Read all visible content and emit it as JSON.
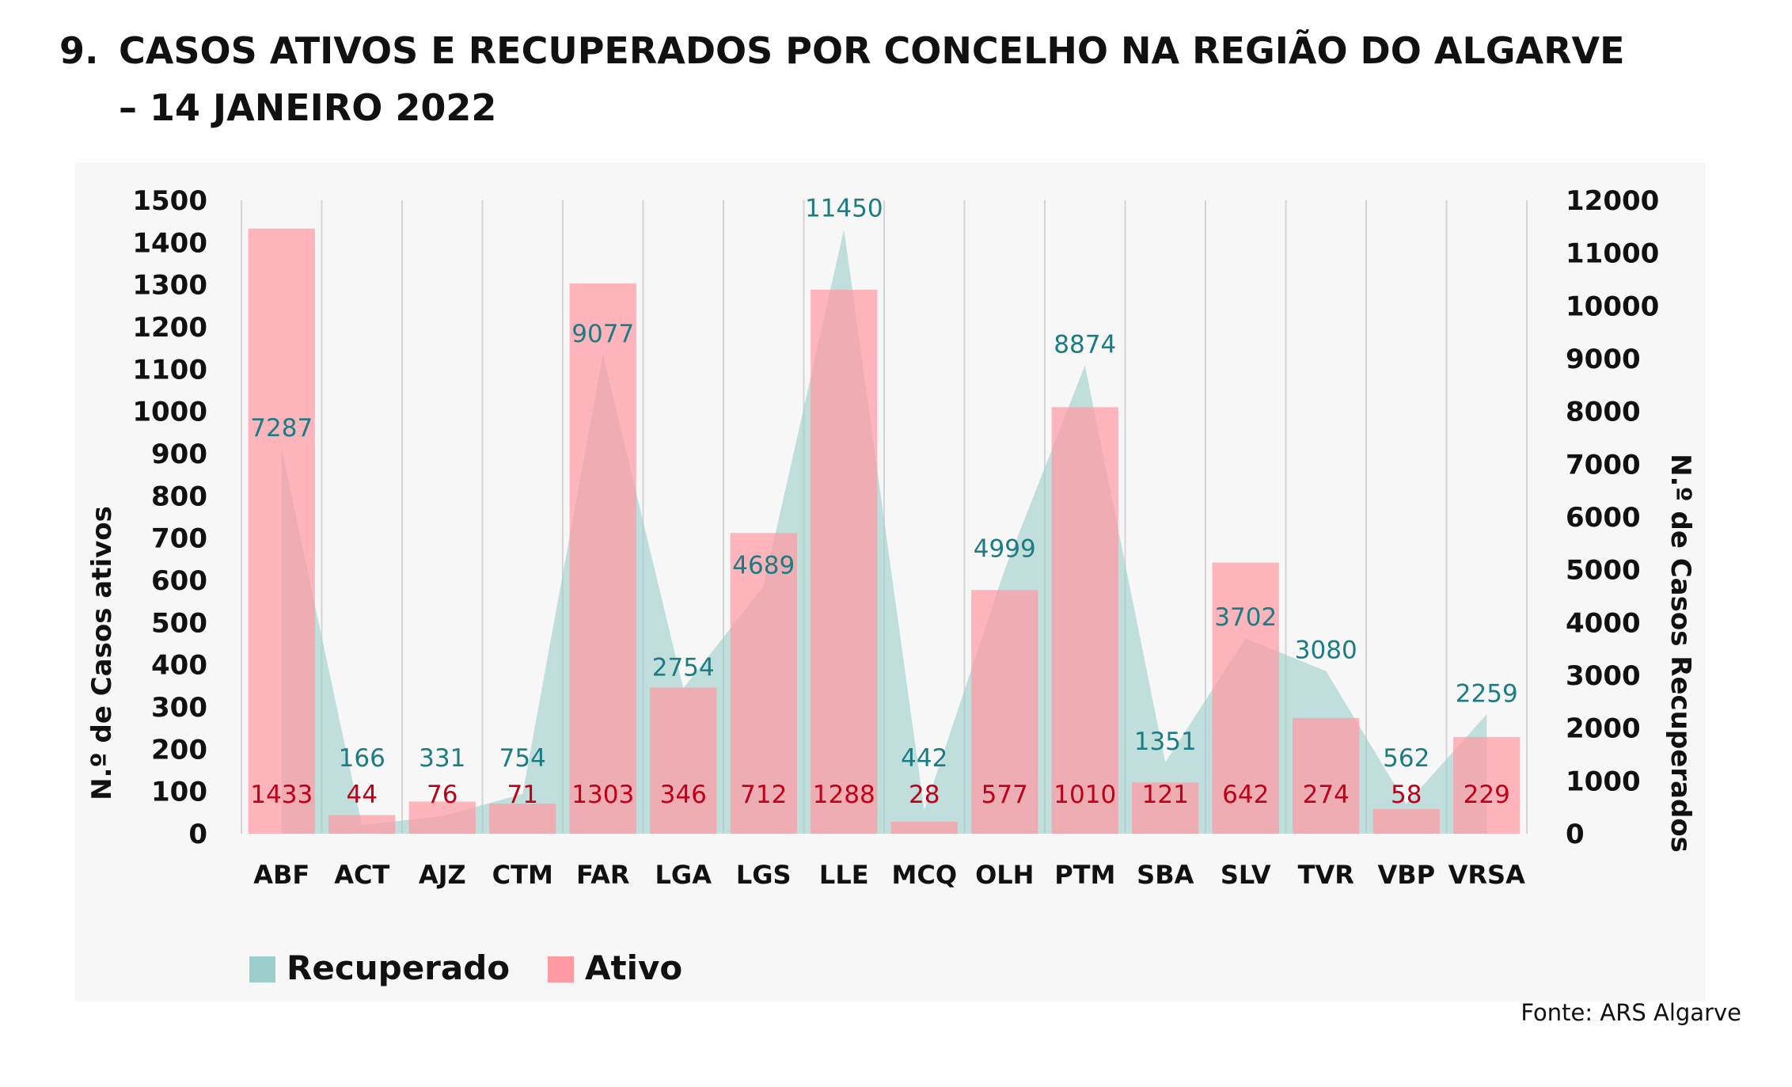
{
  "title": {
    "number": "9.",
    "line1": "CASOS ATIVOS E RECUPERADOS POR CONCELHO NA REGIÃO DO ALGARVE",
    "line2": "– 14 JANEIRO 2022"
  },
  "source": "Fonte: ARS Algarve",
  "chart_data": {
    "type": "bar",
    "categories": [
      "ABF",
      "ACT",
      "AJZ",
      "CTM",
      "FAR",
      "LGA",
      "LGS",
      "LLE",
      "MCQ",
      "OLH",
      "PTM",
      "SBA",
      "SLV",
      "TVR",
      "VBP",
      "VRSA"
    ],
    "series": [
      {
        "name": "Ativo",
        "type": "bar",
        "axis": "left",
        "color": "#ff9aa2",
        "values": [
          1433,
          44,
          76,
          71,
          1303,
          346,
          712,
          1288,
          28,
          577,
          1010,
          121,
          642,
          274,
          58,
          229
        ]
      },
      {
        "name": "Recuperado",
        "type": "area",
        "axis": "right",
        "color": "#9ccfcb",
        "values": [
          7287,
          166,
          331,
          754,
          9077,
          2754,
          4689,
          11450,
          442,
          4999,
          8874,
          1351,
          3702,
          3080,
          562,
          2259
        ]
      }
    ],
    "ylabel_left": "N.º de Casos ativos",
    "ylabel_right": "N.º de Casos Recuperados",
    "ylim_left": [
      0,
      1500
    ],
    "ylim_right": [
      0,
      12000
    ],
    "yticks_left": [
      "0",
      "100",
      "200",
      "300",
      "400",
      "500",
      "600",
      "700",
      "800",
      "900",
      "1000",
      "1100",
      "1200",
      "1300",
      "1400",
      "1500"
    ],
    "yticks_right": [
      "0",
      "1000",
      "2000",
      "3000",
      "4000",
      "5000",
      "6000",
      "7000",
      "8000",
      "9000",
      "10000",
      "11000",
      "12000"
    ],
    "legend": [
      "Recuperado",
      "Ativo"
    ],
    "legend_position": "bottom-left",
    "grid": "vertical category separators",
    "label_color_active": "#c00018",
    "label_color_recovered": "#1c7c84"
  }
}
